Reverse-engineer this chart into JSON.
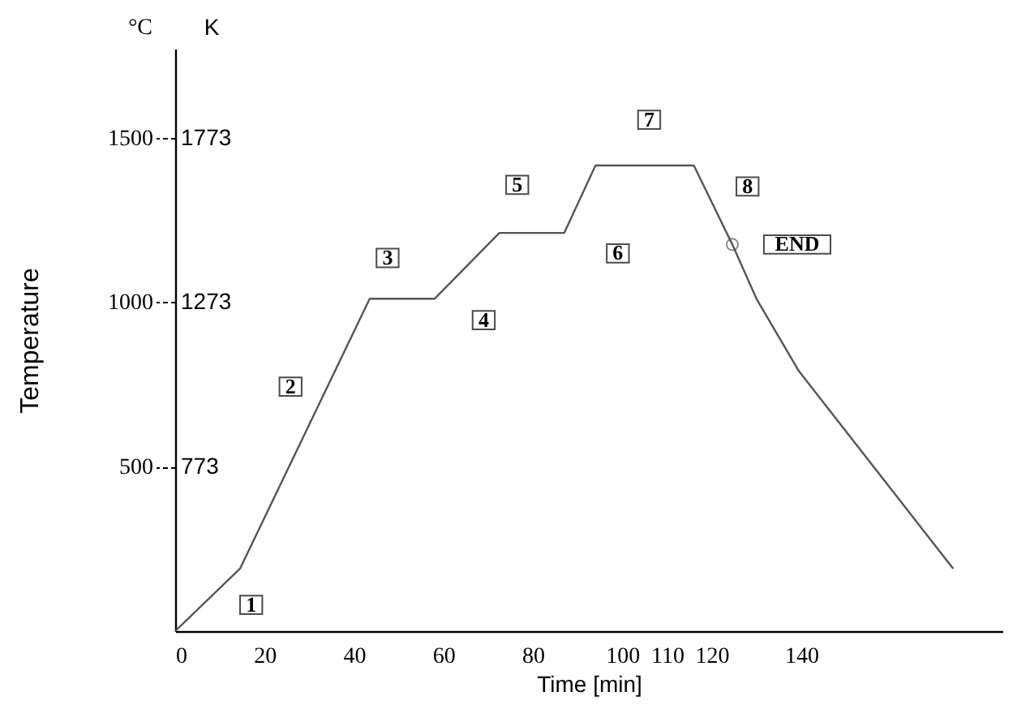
{
  "chart_data": {
    "type": "line",
    "xlabel": "Time [min]",
    "ylabel": "Temperature",
    "y2label": "K",
    "x": [
      0,
      14.5,
      43.5,
      58,
      72.5,
      87,
      94,
      116,
      124.6,
      130,
      139.5,
      174
    ],
    "xlim": [
      0,
      185
    ],
    "xticks": [
      0,
      20,
      40,
      60,
      80,
      100,
      110,
      120,
      140
    ],
    "ylim": [
      0,
      1770
    ],
    "yticks": [
      500,
      1000,
      1500
    ],
    "y2lim": [
      273,
      2043
    ],
    "y2ticks": [
      773,
      1273,
      1773
    ],
    "series": [
      {
        "color": "#555555",
        "values": [
          0,
          190,
          1010,
          1010,
          1210,
          1210,
          1415,
          1415,
          1175,
          1010,
          790,
          190
        ]
      },
      {
        "type": "scatter",
        "color": "#555555",
        "x": [
          124.6
        ],
        "values": [
          1175
        ],
        "marker": "circle"
      }
    ],
    "grid": false,
    "annotations": [
      "°C",
      {
        "text": "1",
        "x": 17,
        "y": 80
      },
      {
        "text": "2",
        "x": 25.8,
        "y": 743
      },
      {
        "text": "3",
        "x": 47.5,
        "y": 1134
      },
      {
        "text": "4",
        "x": 69,
        "y": 945
      },
      {
        "text": "5",
        "x": 76.5,
        "y": 1356
      },
      {
        "text": "6",
        "x": 99,
        "y": 1148
      },
      {
        "text": "7",
        "x": 106,
        "y": 1554
      },
      {
        "text": "8",
        "x": 128,
        "y": 1351
      },
      {
        "text": "END",
        "x": 124.6,
        "y": 1175
      }
    ]
  }
}
